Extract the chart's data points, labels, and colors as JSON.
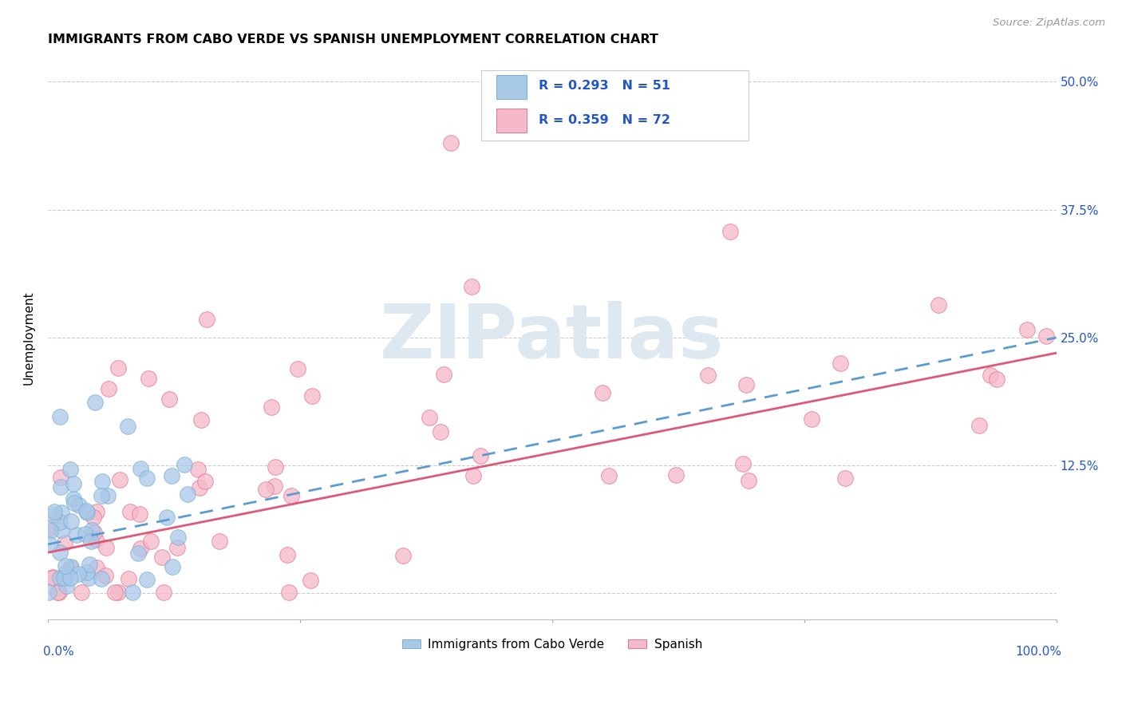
{
  "title": "IMMIGRANTS FROM CABO VERDE VS SPANISH UNEMPLOYMENT CORRELATION CHART",
  "source": "Source: ZipAtlas.com",
  "ylabel": "Unemployment",
  "xlim": [
    0.0,
    1.0
  ],
  "ylim": [
    -0.025,
    0.525
  ],
  "yticks": [
    0.0,
    0.125,
    0.25,
    0.375,
    0.5
  ],
  "ytick_labels_right": [
    "",
    "12.5%",
    "25.0%",
    "37.5%",
    "50.0%"
  ],
  "blue_line_color": "#5b9bd5",
  "pink_line_color": "#e05878",
  "blue_scatter_color": "#a8c8e8",
  "pink_scatter_color": "#f5b8c8",
  "blue_scatter_edge": "#7aaed4",
  "pink_scatter_edge": "#e87090",
  "legend_R1": "R = 0.293",
  "legend_N1": "N = 51",
  "legend_R2": "R = 0.359",
  "legend_N2": "N = 72",
  "legend_color": "#2255cc",
  "watermark": "ZIPatlas",
  "watermark_color": "#dde8f0",
  "background_color": "#ffffff",
  "grid_color": "#cccccc",
  "label1": "Immigrants from Cabo Verde",
  "label2": "Spanish",
  "blue_intercept": 0.048,
  "blue_slope": 0.202,
  "pink_intercept": 0.04,
  "pink_slope": 0.195
}
